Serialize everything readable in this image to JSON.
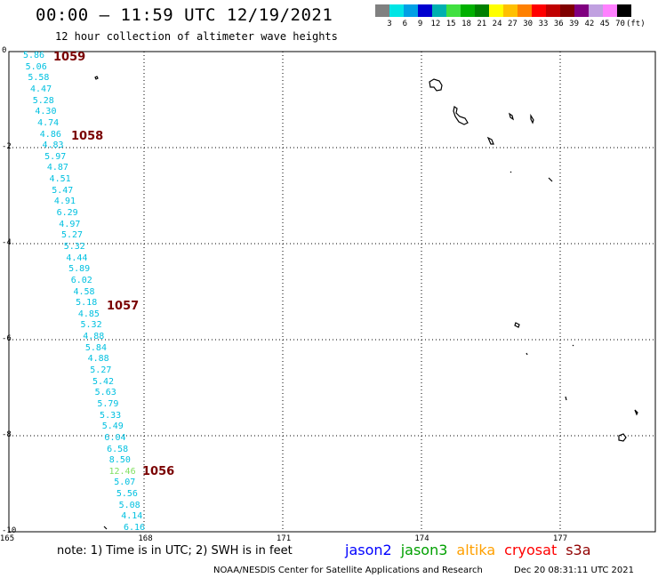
{
  "header": {
    "title": "00:00 – 11:59 UTC 12/19/2021",
    "subtitle": "12 hour collection of altimeter wave heights"
  },
  "color_scale": {
    "colors": [
      "#808080",
      "#00e5e5",
      "#00a0e5",
      "#0000d0",
      "#00b0b0",
      "#40e040",
      "#00b000",
      "#008000",
      "#ffff00",
      "#ffc000",
      "#ff8000",
      "#ff0000",
      "#c00000",
      "#800000",
      "#800080",
      "#c0a0e0",
      "#ff80ff",
      "#000000"
    ],
    "labels": [
      "3",
      "6",
      "9",
      "12",
      "15",
      "18",
      "21",
      "24",
      "27",
      "30",
      "33",
      "36",
      "39",
      "42",
      "45",
      "70",
      "(ft)"
    ]
  },
  "axes": {
    "y_ticks": [
      "0",
      "-2",
      "-4",
      "-6",
      "-8",
      "-10"
    ],
    "x_ticks": [
      "165",
      "168",
      "171",
      "174",
      "177"
    ]
  },
  "passes": [
    {
      "label": "1059"
    },
    {
      "label": "1058"
    },
    {
      "label": "1057"
    },
    {
      "label": "1056"
    }
  ],
  "wave_heights": [
    {
      "v": "5.86",
      "c": "#00c0e0"
    },
    {
      "v": "5.06",
      "c": "#00c0e0"
    },
    {
      "v": "5.58",
      "c": "#00c0e0"
    },
    {
      "v": "4.47",
      "c": "#00c0e0"
    },
    {
      "v": "5.28",
      "c": "#00c0e0"
    },
    {
      "v": "4.30",
      "c": "#00c0e0"
    },
    {
      "v": "4.74",
      "c": "#00c0e0"
    },
    {
      "v": "4.86",
      "c": "#00c0e0"
    },
    {
      "v": "4.83",
      "c": "#00c0e0"
    },
    {
      "v": "5.97",
      "c": "#00c0e0"
    },
    {
      "v": "4.87",
      "c": "#00c0e0"
    },
    {
      "v": "4.51",
      "c": "#00c0e0"
    },
    {
      "v": "5.47",
      "c": "#00c0e0"
    },
    {
      "v": "4.91",
      "c": "#00c0e0"
    },
    {
      "v": "6.29",
      "c": "#00c0e0"
    },
    {
      "v": "4.97",
      "c": "#00c0e0"
    },
    {
      "v": "5.27",
      "c": "#00c0e0"
    },
    {
      "v": "5.32",
      "c": "#00c0e0"
    },
    {
      "v": "4.44",
      "c": "#00c0e0"
    },
    {
      "v": "5.89",
      "c": "#00c0e0"
    },
    {
      "v": "6.02",
      "c": "#00c0e0"
    },
    {
      "v": "4.58",
      "c": "#00c0e0"
    },
    {
      "v": "5.18",
      "c": "#00c0e0"
    },
    {
      "v": "4.85",
      "c": "#00c0e0"
    },
    {
      "v": "5.32",
      "c": "#00c0e0"
    },
    {
      "v": "4.88",
      "c": "#00c0e0"
    },
    {
      "v": "5.84",
      "c": "#00c0e0"
    },
    {
      "v": "4.88",
      "c": "#00c0e0"
    },
    {
      "v": "5.27",
      "c": "#00c0e0"
    },
    {
      "v": "5.42",
      "c": "#00c0e0"
    },
    {
      "v": "5.63",
      "c": "#00c0e0"
    },
    {
      "v": "5.79",
      "c": "#00c0e0"
    },
    {
      "v": "5.33",
      "c": "#00c0e0"
    },
    {
      "v": "5.49",
      "c": "#00c0e0"
    },
    {
      "v": "6.04",
      "c": "#00c0e0"
    },
    {
      "v": "6.58",
      "c": "#00c0e0"
    },
    {
      "v": "8.50",
      "c": "#00c0e0"
    },
    {
      "v": "12.46",
      "c": "#80e060"
    },
    {
      "v": "5.07",
      "c": "#00c0e0"
    },
    {
      "v": "5.56",
      "c": "#00c0e0"
    },
    {
      "v": "5.08",
      "c": "#00c0e0"
    },
    {
      "v": "4.14",
      "c": "#00c0e0"
    },
    {
      "v": "6.16",
      "c": "#00c0e0"
    }
  ],
  "footer": {
    "note": "note:  1) Time is in UTC;  2) SWH is in feet",
    "satellites": [
      {
        "name": "jason2",
        "color": "#0000ff"
      },
      {
        "name": "jason3",
        "color": "#00a000"
      },
      {
        "name": "altika",
        "color": "#ffa000"
      },
      {
        "name": "cryosat",
        "color": "#ff0000"
      },
      {
        "name": "s3a",
        "color": "#900000"
      }
    ],
    "credit": "NOAA/NESDIS Center for Satellite Applications and Research",
    "timestamp": "Dec 20 08:31:11 UTC 2021"
  }
}
